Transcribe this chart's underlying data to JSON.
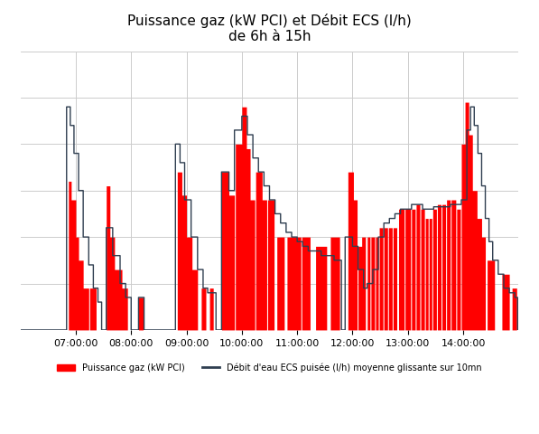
{
  "title_line1": "Puissance gaz (kW PCI) et Débit ECS (l/h)",
  "title_line2": "de 6h à 15h",
  "legend_label1": "Puissance gaz (kW PCI)",
  "legend_label2": "Débit d'eau ECS puisée (l/h) moyenne glissante sur 10mn",
  "color_gas": "#FF0000",
  "color_ecs": "#2F3E50",
  "background_color": "#FFFFFF",
  "grid_color": "#CCCCCC",
  "xlim_start": 21600,
  "xlim_end": 54000,
  "ylim_bottom": 0,
  "ylim_top": 600,
  "xticks": [
    25200,
    28800,
    32400,
    36000,
    39600,
    43200,
    46800,
    50400
  ],
  "xtick_labels": [
    "07:00:00",
    "08:00:00",
    "09:00:00",
    "10:00:00",
    "11:00:00",
    "12:00:00",
    "13:00:00",
    "14:00:00"
  ]
}
